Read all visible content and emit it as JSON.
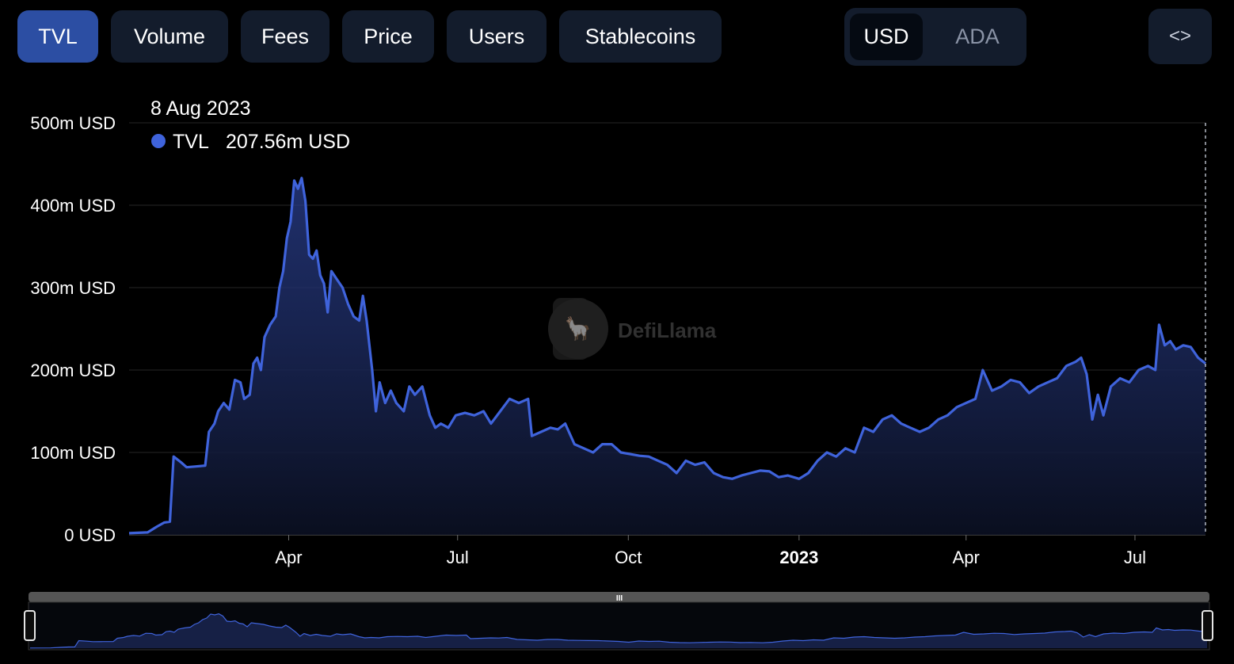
{
  "tabs": [
    {
      "label": "TVL",
      "active": true
    },
    {
      "label": "Volume",
      "active": false
    },
    {
      "label": "Fees",
      "active": false
    },
    {
      "label": "Price",
      "active": false
    },
    {
      "label": "Users",
      "active": false
    },
    {
      "label": "Stablecoins",
      "active": false
    }
  ],
  "currency_toggle": {
    "options": [
      "USD",
      "ADA"
    ],
    "selected": "USD"
  },
  "embed_button": {
    "label": "<>",
    "icon": "code-icon"
  },
  "tooltip": {
    "date": "8 Aug 2023",
    "series": "TVL",
    "value": "207.56m USD",
    "dot_color": "#3f63db"
  },
  "watermark": {
    "text": "DefiLlama"
  },
  "chart_data": {
    "type": "area",
    "y_ticks": [
      "0 USD",
      "100m USD",
      "200m USD",
      "300m USD",
      "400m USD",
      "500m USD"
    ],
    "ylim": [
      0,
      500
    ],
    "y_unit": "m USD",
    "x_ticks": [
      {
        "label": "Apr",
        "date": "2022-04-01",
        "bold": false
      },
      {
        "label": "Jul",
        "date": "2022-07-01",
        "bold": false
      },
      {
        "label": "Oct",
        "date": "2022-10-01",
        "bold": false
      },
      {
        "label": "2023",
        "date": "2023-01-01",
        "bold": true
      },
      {
        "label": "Apr",
        "date": "2023-04-01",
        "bold": false
      },
      {
        "label": "Jul",
        "date": "2023-07-01",
        "bold": false
      }
    ],
    "xlim": [
      "2022-01-05",
      "2023-08-08"
    ],
    "line_color": "#3f63db",
    "grid": true,
    "series": [
      {
        "name": "TVL",
        "points": [
          [
            "2022-01-05",
            2
          ],
          [
            "2022-01-15",
            3
          ],
          [
            "2022-01-20",
            10
          ],
          [
            "2022-01-24",
            15
          ],
          [
            "2022-01-27",
            16
          ],
          [
            "2022-01-29",
            95
          ],
          [
            "2022-02-02",
            88
          ],
          [
            "2022-02-05",
            82
          ],
          [
            "2022-02-10",
            83
          ],
          [
            "2022-02-15",
            84
          ],
          [
            "2022-02-17",
            125
          ],
          [
            "2022-02-20",
            135
          ],
          [
            "2022-02-22",
            150
          ],
          [
            "2022-02-25",
            160
          ],
          [
            "2022-02-28",
            152
          ],
          [
            "2022-03-03",
            188
          ],
          [
            "2022-03-06",
            185
          ],
          [
            "2022-03-08",
            165
          ],
          [
            "2022-03-11",
            170
          ],
          [
            "2022-03-13",
            208
          ],
          [
            "2022-03-15",
            215
          ],
          [
            "2022-03-17",
            200
          ],
          [
            "2022-03-19",
            240
          ],
          [
            "2022-03-22",
            255
          ],
          [
            "2022-03-25",
            265
          ],
          [
            "2022-03-27",
            300
          ],
          [
            "2022-03-29",
            320
          ],
          [
            "2022-03-31",
            360
          ],
          [
            "2022-04-02",
            380
          ],
          [
            "2022-04-04",
            430
          ],
          [
            "2022-04-06",
            420
          ],
          [
            "2022-04-08",
            433
          ],
          [
            "2022-04-10",
            405
          ],
          [
            "2022-04-12",
            340
          ],
          [
            "2022-04-14",
            335
          ],
          [
            "2022-04-16",
            345
          ],
          [
            "2022-04-18",
            315
          ],
          [
            "2022-04-20",
            305
          ],
          [
            "2022-04-22",
            270
          ],
          [
            "2022-04-24",
            320
          ],
          [
            "2022-04-27",
            310
          ],
          [
            "2022-04-30",
            300
          ],
          [
            "2022-05-03",
            280
          ],
          [
            "2022-05-06",
            265
          ],
          [
            "2022-05-09",
            260
          ],
          [
            "2022-05-11",
            290
          ],
          [
            "2022-05-13",
            260
          ],
          [
            "2022-05-16",
            200
          ],
          [
            "2022-05-18",
            150
          ],
          [
            "2022-05-20",
            185
          ],
          [
            "2022-05-23",
            160
          ],
          [
            "2022-05-26",
            175
          ],
          [
            "2022-05-29",
            160
          ],
          [
            "2022-06-02",
            150
          ],
          [
            "2022-06-05",
            180
          ],
          [
            "2022-06-08",
            170
          ],
          [
            "2022-06-12",
            180
          ],
          [
            "2022-06-16",
            145
          ],
          [
            "2022-06-19",
            130
          ],
          [
            "2022-06-22",
            135
          ],
          [
            "2022-06-26",
            130
          ],
          [
            "2022-06-30",
            145
          ],
          [
            "2022-07-05",
            148
          ],
          [
            "2022-07-10",
            145
          ],
          [
            "2022-07-15",
            150
          ],
          [
            "2022-07-19",
            135
          ],
          [
            "2022-07-24",
            150
          ],
          [
            "2022-07-29",
            165
          ],
          [
            "2022-08-03",
            160
          ],
          [
            "2022-08-08",
            165
          ],
          [
            "2022-08-10",
            120
          ],
          [
            "2022-08-15",
            125
          ],
          [
            "2022-08-20",
            130
          ],
          [
            "2022-08-24",
            128
          ],
          [
            "2022-08-28",
            135
          ],
          [
            "2022-09-02",
            110
          ],
          [
            "2022-09-07",
            105
          ],
          [
            "2022-09-12",
            100
          ],
          [
            "2022-09-17",
            110
          ],
          [
            "2022-09-22",
            110
          ],
          [
            "2022-09-27",
            100
          ],
          [
            "2022-10-02",
            98
          ],
          [
            "2022-10-07",
            96
          ],
          [
            "2022-10-12",
            95
          ],
          [
            "2022-10-17",
            90
          ],
          [
            "2022-10-22",
            85
          ],
          [
            "2022-10-27",
            75
          ],
          [
            "2022-11-01",
            90
          ],
          [
            "2022-11-06",
            85
          ],
          [
            "2022-11-11",
            88
          ],
          [
            "2022-11-16",
            75
          ],
          [
            "2022-11-21",
            70
          ],
          [
            "2022-11-26",
            68
          ],
          [
            "2022-12-01",
            72
          ],
          [
            "2022-12-06",
            75
          ],
          [
            "2022-12-11",
            78
          ],
          [
            "2022-12-16",
            77
          ],
          [
            "2022-12-21",
            70
          ],
          [
            "2022-12-26",
            72
          ],
          [
            "2023-01-01",
            68
          ],
          [
            "2023-01-06",
            75
          ],
          [
            "2023-01-11",
            90
          ],
          [
            "2023-01-16",
            100
          ],
          [
            "2023-01-21",
            95
          ],
          [
            "2023-01-26",
            105
          ],
          [
            "2023-01-31",
            100
          ],
          [
            "2023-02-05",
            130
          ],
          [
            "2023-02-10",
            125
          ],
          [
            "2023-02-15",
            140
          ],
          [
            "2023-02-20",
            145
          ],
          [
            "2023-02-25",
            135
          ],
          [
            "2023-03-02",
            130
          ],
          [
            "2023-03-07",
            125
          ],
          [
            "2023-03-12",
            130
          ],
          [
            "2023-03-17",
            140
          ],
          [
            "2023-03-22",
            145
          ],
          [
            "2023-03-27",
            155
          ],
          [
            "2023-04-01",
            160
          ],
          [
            "2023-04-06",
            165
          ],
          [
            "2023-04-10",
            200
          ],
          [
            "2023-04-15",
            175
          ],
          [
            "2023-04-20",
            180
          ],
          [
            "2023-04-25",
            188
          ],
          [
            "2023-04-30",
            185
          ],
          [
            "2023-05-05",
            172
          ],
          [
            "2023-05-10",
            180
          ],
          [
            "2023-05-15",
            185
          ],
          [
            "2023-05-20",
            190
          ],
          [
            "2023-05-25",
            205
          ],
          [
            "2023-05-30",
            210
          ],
          [
            "2023-06-02",
            215
          ],
          [
            "2023-06-05",
            195
          ],
          [
            "2023-06-08",
            140
          ],
          [
            "2023-06-11",
            170
          ],
          [
            "2023-06-14",
            145
          ],
          [
            "2023-06-18",
            180
          ],
          [
            "2023-06-23",
            190
          ],
          [
            "2023-06-28",
            185
          ],
          [
            "2023-07-03",
            200
          ],
          [
            "2023-07-08",
            205
          ],
          [
            "2023-07-12",
            200
          ],
          [
            "2023-07-14",
            255
          ],
          [
            "2023-07-17",
            230
          ],
          [
            "2023-07-20",
            235
          ],
          [
            "2023-07-23",
            225
          ],
          [
            "2023-07-27",
            230
          ],
          [
            "2023-07-31",
            228
          ],
          [
            "2023-08-04",
            215
          ],
          [
            "2023-08-08",
            208
          ]
        ]
      }
    ]
  },
  "range_slider": {
    "handle_glyph": "III"
  }
}
